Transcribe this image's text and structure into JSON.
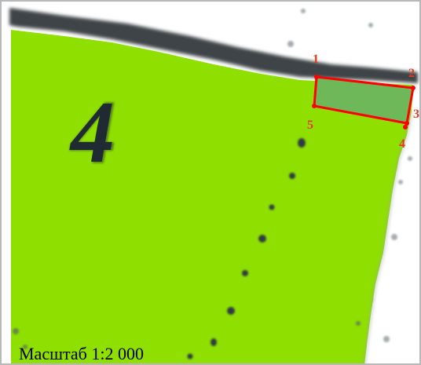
{
  "map": {
    "parcel_number": "4",
    "scale_label": "Масштаб 1:2 000",
    "vertex_labels": [
      "1",
      "2",
      "3",
      "4",
      "5"
    ],
    "colors": {
      "field": "#8fe000",
      "parcel_fill": "#6fb85a",
      "parcel_outline": "#ff0000",
      "vertex_label": "#e23b1c",
      "background": "#ffffff",
      "tree_line": "#2e3538"
    }
  }
}
